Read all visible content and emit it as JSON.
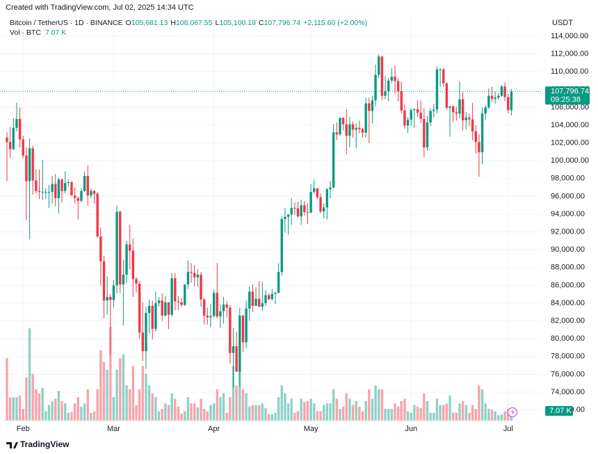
{
  "header": {
    "created": "Created with TradingView.com, Jul 02, 2025 14:34 UTC"
  },
  "chart_data": {
    "type": "candlestick",
    "title": "Bitcoin / TetherUS · 1D · BINANCE",
    "legend": [
      {
        "key": "O",
        "text": "105,681.13"
      },
      {
        "key": "H",
        "text": "108,067.55"
      },
      {
        "key": "L",
        "text": "105,100.19"
      },
      {
        "key": "C",
        "text": "107,796.74"
      }
    ],
    "change": "+2,115.60 (+2.00%)",
    "volume_title": "Vol · BTC",
    "volume_text": "7.07 K",
    "currency": "USDT",
    "up_color": "#089981",
    "down_color": "#f23645",
    "grid": true,
    "ylim": [
      70800,
      116500
    ],
    "y2lim": [
      0,
      520
    ],
    "yticks": [
      {
        "value": 114000,
        "label": "114,000.00"
      },
      {
        "value": 112000,
        "label": "112,000.00"
      },
      {
        "value": 110000,
        "label": "110,000.00"
      },
      {
        "value": 108000,
        "label": "108,000.00"
      },
      {
        "value": 106000,
        "label": "106,000.00"
      },
      {
        "value": 104000,
        "label": "104,000.00"
      },
      {
        "value": 102000,
        "label": "102,000.00"
      },
      {
        "value": 100000,
        "label": "100,000.00"
      },
      {
        "value": 98000,
        "label": "98,000.00"
      },
      {
        "value": 96000,
        "label": "96,000.00"
      },
      {
        "value": 94000,
        "label": "94,000.00"
      },
      {
        "value": 92000,
        "label": "92,000.00"
      },
      {
        "value": 90000,
        "label": "90,000.00"
      },
      {
        "value": 88000,
        "label": "88,000.00"
      },
      {
        "value": 86000,
        "label": "86,000.00"
      },
      {
        "value": 84000,
        "label": "84,000.00"
      },
      {
        "value": 82000,
        "label": "82,000.00"
      },
      {
        "value": 80000,
        "label": "80,000.00"
      },
      {
        "value": 78000,
        "label": "78,000.00"
      },
      {
        "value": 76000,
        "label": "76,000.00"
      },
      {
        "value": 74000,
        "label": "74,000.00"
      },
      {
        "value": 72000,
        "label": "72,000.00"
      }
    ],
    "xticks": [
      {
        "value": 5,
        "label": "Feb"
      },
      {
        "value": 33,
        "label": "Mar"
      },
      {
        "value": 64,
        "label": "Apr"
      },
      {
        "value": 94,
        "label": "May"
      },
      {
        "value": 125,
        "label": "Jun"
      },
      {
        "value": 155,
        "label": "Jul"
      }
    ],
    "last_price_label": "107,796.74",
    "countdown": "09:25:38",
    "last_volume_label": "7.07 K",
    "candles": [
      [
        102600,
        103200,
        97700,
        102100,
        80
      ],
      [
        102100,
        103800,
        100300,
        101300,
        30
      ],
      [
        101300,
        104800,
        101200,
        103700,
        30
      ],
      [
        103700,
        106500,
        103300,
        104700,
        30
      ],
      [
        104700,
        106000,
        101500,
        102400,
        32
      ],
      [
        102400,
        102800,
        100300,
        100600,
        15
      ],
      [
        100600,
        101500,
        93300,
        97700,
        55
      ],
      [
        97700,
        102500,
        91200,
        101400,
        118
      ],
      [
        101400,
        101700,
        96200,
        97800,
        60
      ],
      [
        97800,
        99000,
        96300,
        96600,
        40
      ],
      [
        96600,
        99000,
        95700,
        96500,
        35
      ],
      [
        96500,
        100100,
        95600,
        96500,
        42
      ],
      [
        96500,
        96900,
        95700,
        96500,
        12
      ],
      [
        96500,
        97300,
        94700,
        96500,
        20
      ],
      [
        96500,
        98300,
        95200,
        97400,
        25
      ],
      [
        97400,
        98500,
        94900,
        95800,
        28
      ],
      [
        95800,
        98100,
        94100,
        97900,
        38
      ],
      [
        97900,
        98000,
        95300,
        96600,
        25
      ],
      [
        96600,
        98800,
        96300,
        97500,
        22
      ],
      [
        97500,
        97900,
        97100,
        97600,
        10
      ],
      [
        97600,
        97700,
        96100,
        96100,
        11
      ],
      [
        96100,
        97000,
        95200,
        95800,
        22
      ],
      [
        95800,
        96000,
        93400,
        95500,
        30
      ],
      [
        95500,
        96900,
        95300,
        96600,
        18
      ],
      [
        96600,
        98800,
        96500,
        98300,
        22
      ],
      [
        98300,
        99500,
        94900,
        96100,
        40
      ],
      [
        96100,
        96900,
        95800,
        96600,
        10
      ],
      [
        96600,
        96700,
        95200,
        96300,
        12
      ],
      [
        96300,
        96500,
        91300,
        91500,
        40
      ],
      [
        91500,
        92500,
        86000,
        88700,
        90
      ],
      [
        88700,
        89300,
        82300,
        84300,
        75
      ],
      [
        84300,
        87000,
        82700,
        84700,
        65
      ],
      [
        84700,
        85000,
        78200,
        84350,
        120
      ],
      [
        84350,
        86600,
        83500,
        86000,
        30
      ],
      [
        86000,
        95000,
        85100,
        94270,
        65
      ],
      [
        94270,
        94400,
        85100,
        86100,
        80
      ],
      [
        86100,
        88900,
        81500,
        87200,
        85
      ],
      [
        87200,
        91000,
        86300,
        90600,
        45
      ],
      [
        90600,
        92800,
        87800,
        89900,
        40
      ],
      [
        89900,
        91300,
        84700,
        86700,
        70
      ],
      [
        86700,
        86900,
        85200,
        86200,
        20
      ],
      [
        86200,
        86500,
        80000,
        80700,
        40
      ],
      [
        80700,
        84100,
        77500,
        78600,
        70
      ],
      [
        78600,
        83600,
        76600,
        82900,
        60
      ],
      [
        82900,
        84400,
        80600,
        83700,
        45
      ],
      [
        83700,
        84300,
        79900,
        81100,
        35
      ],
      [
        81100,
        85300,
        80800,
        84000,
        30
      ],
      [
        84000,
        84700,
        83600,
        84300,
        12
      ],
      [
        84300,
        85100,
        82000,
        82600,
        15
      ],
      [
        82600,
        84800,
        82500,
        84100,
        22
      ],
      [
        84100,
        84100,
        81100,
        82700,
        20
      ],
      [
        82700,
        87400,
        82500,
        86800,
        35
      ],
      [
        86800,
        87400,
        83200,
        84200,
        28
      ],
      [
        84200,
        84800,
        83200,
        84100,
        18
      ],
      [
        84100,
        84600,
        83600,
        83800,
        9
      ],
      [
        83800,
        86100,
        83700,
        86100,
        12
      ],
      [
        86100,
        88800,
        85600,
        87500,
        30
      ],
      [
        87500,
        88500,
        86300,
        87400,
        22
      ],
      [
        87400,
        88300,
        85900,
        86900,
        22
      ],
      [
        86900,
        87800,
        85800,
        87200,
        17
      ],
      [
        87200,
        87500,
        83600,
        84400,
        28
      ],
      [
        84400,
        84600,
        81600,
        82600,
        15
      ],
      [
        82600,
        83500,
        81600,
        82400,
        12
      ],
      [
        82400,
        83900,
        81300,
        82550,
        20
      ],
      [
        82550,
        85500,
        82400,
        85150,
        22
      ],
      [
        85150,
        88500,
        82300,
        82500,
        40
      ],
      [
        82500,
        83900,
        81200,
        83100,
        30
      ],
      [
        83100,
        84700,
        81700,
        83850,
        35
      ],
      [
        83850,
        84200,
        82400,
        83500,
        10
      ],
      [
        83500,
        83800,
        77200,
        78400,
        30
      ],
      [
        78400,
        81200,
        74500,
        79150,
        70
      ],
      [
        79150,
        80800,
        76300,
        76300,
        45
      ],
      [
        76300,
        83500,
        74600,
        82600,
        75
      ],
      [
        82600,
        82700,
        78500,
        79600,
        40
      ],
      [
        79600,
        84300,
        78900,
        83400,
        35
      ],
      [
        83400,
        85900,
        82000,
        85300,
        18
      ],
      [
        85300,
        86100,
        83000,
        83700,
        20
      ],
      [
        83700,
        85800,
        83700,
        84500,
        20
      ],
      [
        84500,
        86500,
        83600,
        83600,
        20
      ],
      [
        83600,
        86400,
        83100,
        84000,
        22
      ],
      [
        84000,
        85500,
        83700,
        84900,
        16
      ],
      [
        84900,
        85100,
        84300,
        84450,
        8
      ],
      [
        84450,
        85600,
        84300,
        85050,
        8
      ],
      [
        85050,
        85300,
        83900,
        85170,
        10
      ],
      [
        85170,
        88500,
        85100,
        87500,
        30
      ],
      [
        87500,
        93800,
        87100,
        93450,
        45
      ],
      [
        93450,
        94700,
        91900,
        93700,
        35
      ],
      [
        93700,
        94000,
        91700,
        93950,
        22
      ],
      [
        93950,
        95800,
        92800,
        94700,
        28
      ],
      [
        94700,
        95300,
        93900,
        94650,
        10
      ],
      [
        94650,
        95400,
        93600,
        93750,
        12
      ],
      [
        93750,
        95600,
        92800,
        95000,
        28
      ],
      [
        95000,
        95500,
        93900,
        94250,
        24
      ],
      [
        94250,
        95200,
        92900,
        94170,
        25
      ],
      [
        94170,
        97400,
        94100,
        96500,
        28
      ],
      [
        96500,
        97900,
        96300,
        96900,
        22
      ],
      [
        96900,
        96900,
        95700,
        95900,
        12
      ],
      [
        95900,
        96300,
        94100,
        94300,
        12
      ],
      [
        94300,
        95200,
        93500,
        94750,
        20
      ],
      [
        94750,
        96900,
        93400,
        96800,
        22
      ],
      [
        96800,
        97700,
        95800,
        97000,
        22
      ],
      [
        97000,
        104100,
        96900,
        103200,
        40
      ],
      [
        103200,
        104300,
        102300,
        102950,
        28
      ],
      [
        102950,
        104900,
        102800,
        104800,
        15
      ],
      [
        104800,
        104900,
        103400,
        104100,
        18
      ],
      [
        104100,
        105800,
        100700,
        102800,
        35
      ],
      [
        102800,
        104900,
        101500,
        104100,
        28
      ],
      [
        104100,
        104400,
        102600,
        103500,
        20
      ],
      [
        103500,
        104200,
        101400,
        103700,
        25
      ],
      [
        103700,
        104500,
        103100,
        103550,
        18
      ],
      [
        103550,
        103700,
        102600,
        103150,
        12
      ],
      [
        103150,
        107100,
        102600,
        106450,
        25
      ],
      [
        106450,
        107100,
        102000,
        105600,
        40
      ],
      [
        105600,
        107300,
        104200,
        106800,
        28
      ],
      [
        106800,
        110800,
        106100,
        109650,
        45
      ],
      [
        109650,
        111980,
        109300,
        111700,
        40
      ],
      [
        111700,
        111800,
        106800,
        107300,
        40
      ],
      [
        107300,
        109500,
        106900,
        107800,
        15
      ],
      [
        107800,
        109300,
        106700,
        109000,
        15
      ],
      [
        109000,
        110400,
        108700,
        109450,
        15
      ],
      [
        109450,
        110700,
        107500,
        108950,
        22
      ],
      [
        108950,
        109300,
        106700,
        107800,
        18
      ],
      [
        107800,
        108900,
        105300,
        105650,
        25
      ],
      [
        105650,
        106300,
        103600,
        103950,
        28
      ],
      [
        103950,
        104900,
        103100,
        104600,
        12
      ],
      [
        104600,
        105900,
        103900,
        105700,
        10
      ],
      [
        105700,
        105900,
        103700,
        105800,
        20
      ],
      [
        105800,
        106800,
        104900,
        105400,
        18
      ],
      [
        105400,
        106800,
        104200,
        104700,
        16
      ],
      [
        104700,
        105900,
        100400,
        101500,
        35
      ],
      [
        101500,
        105000,
        101100,
        104300,
        25
      ],
      [
        104300,
        105900,
        103900,
        105600,
        10
      ],
      [
        105600,
        106400,
        104900,
        105750,
        10
      ],
      [
        105750,
        110600,
        105300,
        110250,
        28
      ],
      [
        110250,
        110400,
        108300,
        110250,
        20
      ],
      [
        110250,
        110400,
        108300,
        108700,
        20
      ],
      [
        108700,
        108800,
        105700,
        105950,
        22
      ],
      [
        105950,
        106200,
        102700,
        106100,
        32
      ],
      [
        106100,
        106200,
        104300,
        105450,
        10
      ],
      [
        105450,
        106100,
        104500,
        105300,
        10
      ],
      [
        105300,
        108900,
        104800,
        106900,
        22
      ],
      [
        106900,
        107700,
        103400,
        104550,
        25
      ],
      [
        104550,
        105500,
        103500,
        104850,
        20
      ],
      [
        104850,
        105300,
        103900,
        104650,
        10
      ],
      [
        104650,
        106500,
        102300,
        103300,
        20
      ],
      [
        103300,
        104000,
        100800,
        102100,
        15
      ],
      [
        102100,
        103000,
        98200,
        100950,
        45
      ],
      [
        100950,
        106000,
        99600,
        105300,
        40
      ],
      [
        105300,
        106300,
        104600,
        106000,
        22
      ],
      [
        106000,
        108100,
        105800,
        107300,
        15
      ],
      [
        107300,
        108300,
        106600,
        106950,
        14
      ],
      [
        106950,
        107800,
        106400,
        107100,
        12
      ],
      [
        107100,
        107600,
        106800,
        107300,
        7
      ],
      [
        107300,
        108500,
        107200,
        108350,
        8
      ],
      [
        108350,
        108800,
        106700,
        107150,
        12
      ],
      [
        107150,
        107550,
        105300,
        105680,
        15
      ],
      [
        105681.13,
        108067.55,
        105100.19,
        107796.74,
        7.07
      ]
    ]
  },
  "footer": {
    "brand": "TradingView"
  }
}
